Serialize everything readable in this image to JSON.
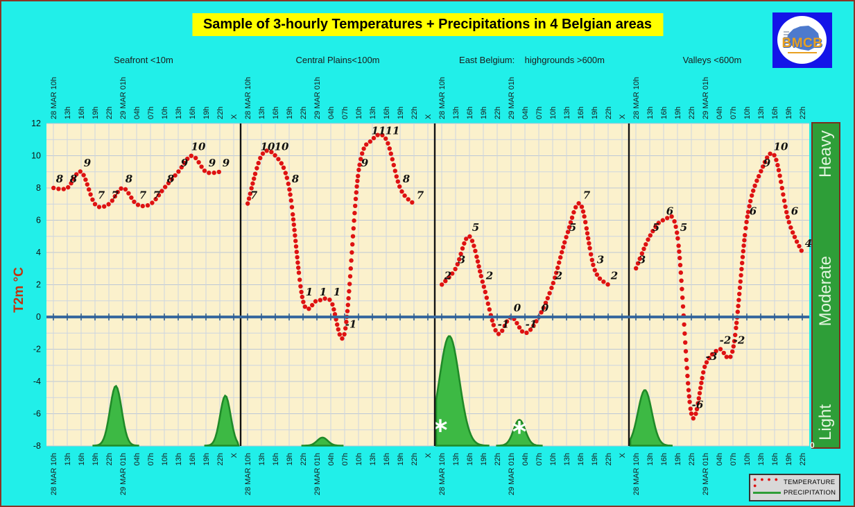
{
  "title": "Sample of 3-hourly Temperatures + Precipitations in 4 Belgian areas",
  "logo_text": "BMCB",
  "y_axis_label": "T2m °C",
  "right_scale": {
    "heavy": "Heavy",
    "moderate": "Moderate",
    "light": "Light",
    "zero_label": "0"
  },
  "legend": {
    "temperature_label": "TEMPERATURE",
    "precipitation_label": "PRECIPITATION"
  },
  "colors": {
    "temperature": "#DE1212",
    "value_label": "#111111",
    "precipitation_fill": "#3DB944",
    "precipitation_stroke": "#1F8A28",
    "zero_line": "#38699E",
    "grid_minor": "#CDD5E0",
    "grid_even": "#BDC7D5",
    "plot_background": "#FBF1CC",
    "separator": "#111111",
    "snow_marker": "#FFFFFF"
  },
  "chart_data": {
    "type": "line",
    "title": "Sample of 3-hourly Temperatures + Precipitations in 4 Belgian areas",
    "ylabel": "T2m °C",
    "ylim": [
      -8,
      12
    ],
    "yticks": [
      -8,
      -6,
      -4,
      -2,
      0,
      2,
      4,
      6,
      8,
      10,
      12
    ],
    "time_labels": [
      "28 MAR 10h",
      "13h",
      "16h",
      "19h",
      "22h",
      "29 MAR 01h",
      "04h",
      "07h",
      "10h",
      "13h",
      "16h",
      "19h",
      "22h"
    ],
    "x_terminator": "X",
    "panels": [
      {
        "label": "Seafront <10m",
        "temps": [
          8,
          8,
          9,
          7,
          7,
          8,
          7,
          7,
          8,
          9,
          10,
          9,
          9
        ],
        "precip_bumps": [
          {
            "center_col": 4.5,
            "peak_temp": -4.3,
            "sigma_col": 0.42
          },
          {
            "center_col": 12.4,
            "peak_temp": -4.9,
            "sigma_col": 0.38
          }
        ],
        "snow_markers": [],
        "has_x_column": true
      },
      {
        "label": "Central Plains<100m",
        "temps": [
          7,
          10,
          10,
          8,
          1,
          1,
          1,
          -1,
          9,
          11,
          11,
          8,
          7
        ],
        "precip_bumps": [
          {
            "center_col": 5.4,
            "peak_temp": -7.5,
            "sigma_col": 0.38
          }
        ],
        "snow_markers": [],
        "has_x_column": true
      },
      {
        "label": "East Belgium:    highgrounds >600m",
        "temps": [
          2,
          3,
          5,
          2,
          -1,
          0,
          -1,
          0,
          2,
          5,
          7,
          3,
          2
        ],
        "precip_bumps": [
          {
            "center_col": 0.55,
            "peak_temp": -1.2,
            "sigma_col": 0.72
          },
          {
            "center_col": 5.6,
            "peak_temp": -6.4,
            "sigma_col": 0.42
          }
        ],
        "snow_markers": [
          {
            "center_col": -0.1,
            "temp": -7.1
          },
          {
            "center_col": 5.6,
            "temp": -7.2
          }
        ],
        "has_x_column": true
      },
      {
        "label": "Valleys <600m",
        "temps": [
          3,
          5,
          6,
          5,
          -6,
          -3,
          -2,
          -2,
          6,
          9,
          10,
          6,
          4
        ],
        "precip_bumps": [
          {
            "center_col": 0.65,
            "peak_temp": -4.55,
            "sigma_col": 0.5
          }
        ],
        "snow_markers": [],
        "has_x_column": false
      }
    ]
  }
}
